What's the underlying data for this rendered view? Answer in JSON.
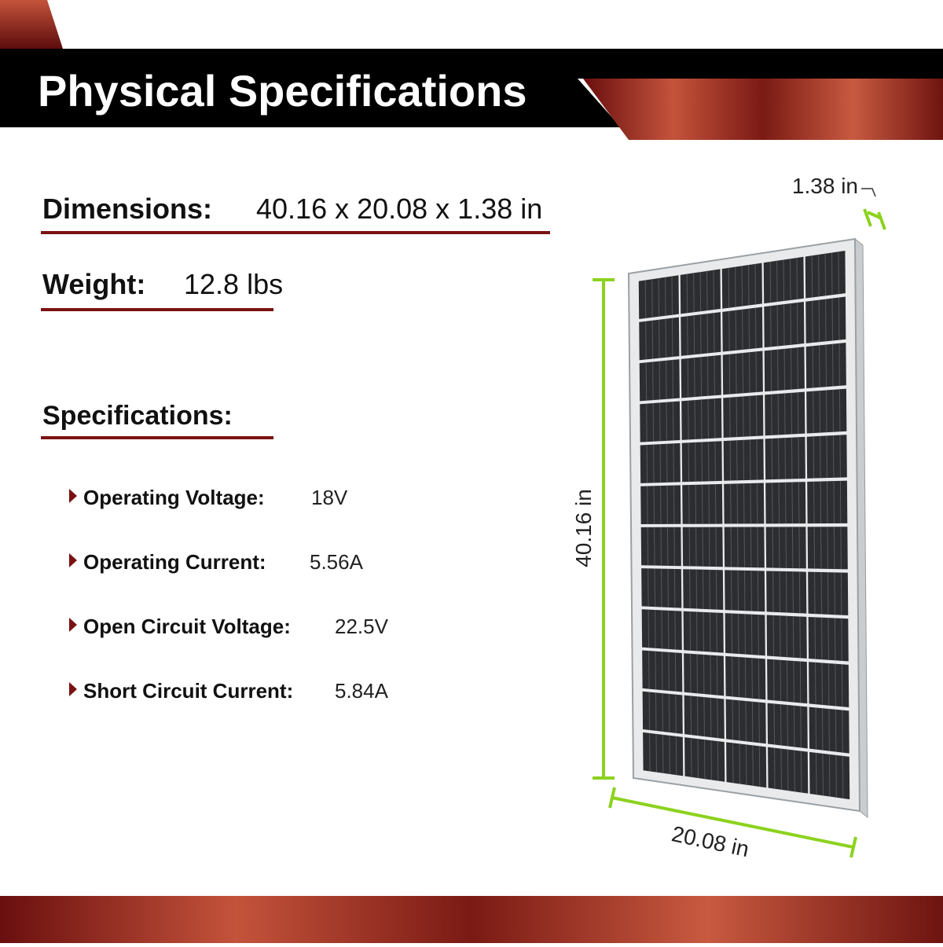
{
  "header": {
    "title": "Physical Specifications"
  },
  "dimensions": {
    "label": "Dimensions:",
    "value": "40.16 x 20.08 x 1.38 in"
  },
  "weight": {
    "label": "Weight:",
    "value": "12.8 lbs"
  },
  "specifications": {
    "title": "Specifications:",
    "items": [
      {
        "label": "Operating Voltage:",
        "value": "18V"
      },
      {
        "label": "Operating Current:",
        "value": "5.56A"
      },
      {
        "label": "Open Circuit Voltage:",
        "value": "22.5V"
      },
      {
        "label": "Short Circuit Current:",
        "value": "5.84A"
      }
    ]
  },
  "panel": {
    "depth_label": "1.38 in",
    "height_label": "40.16 in",
    "width_label": "20.08 in"
  }
}
